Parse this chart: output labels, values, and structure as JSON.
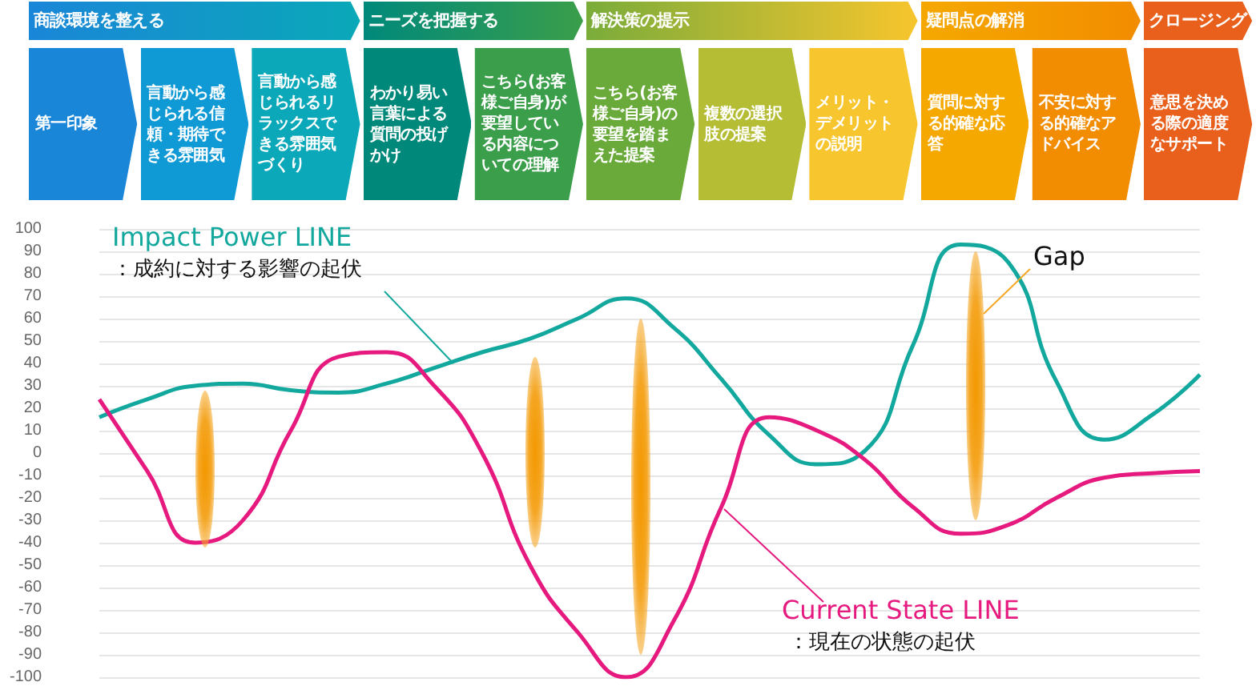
{
  "chart_data": {
    "type": "line",
    "categories": [
      null,
      null,
      null,
      null,
      null,
      null,
      null,
      null,
      null,
      null,
      null,
      null,
      null,
      null,
      null,
      null,
      null,
      null,
      null,
      null,
      null,
      null,
      null,
      null
    ],
    "series": [
      {
        "name": "Impact Power LINE",
        "color": "#13a89e",
        "values": [
          16,
          24,
          30,
          31,
          28,
          27,
          31,
          38,
          45,
          51,
          60,
          69,
          56,
          33,
          8,
          -5,
          1,
          48,
          93,
          85,
          32,
          6,
          17,
          35
        ]
      },
      {
        "name": "Current State LINE",
        "color": "#e6197f",
        "values": [
          24,
          -8,
          -40,
          -30,
          10,
          43,
          45,
          30,
          0,
          -50,
          -80,
          -100,
          -75,
          -24,
          16,
          10,
          -3,
          -24,
          -36,
          -32,
          -20,
          -11,
          -9,
          -8
        ]
      }
    ],
    "annotations": [
      "商談環境を整える",
      "ニーズを把握する",
      "解決策の提示",
      "疑問点の解消",
      "クロージング",
      "第一印象",
      "言動から感じられる信頼・期待できる雰囲気",
      "言動から感じられるリラックスできる雰囲気づくり",
      "わかり易い言葉による質問の投げかけ",
      "こちら(お客様ご自身)が要望している内容についての理解",
      "こちら(お客様ご自身)の要望を踏まえた提案",
      "複数の選択肢の提案",
      "メリット・デメリットの説明",
      "質問に対する的確な応答",
      "不安に対する的確なアドバイス",
      "意思を決める際の適度なサポート",
      "：成約に対する影響の起伏",
      "：現在の状態の起伏",
      "Gap"
    ],
    "ylim": [
      -100,
      100
    ],
    "yticks": [
      -100,
      -90,
      -80,
      -70,
      -60,
      -50,
      -40,
      -30,
      -20,
      -10,
      0,
      10,
      20,
      30,
      40,
      50,
      60,
      70,
      80,
      90,
      100
    ],
    "tick_labels": "y",
    "grid": "y",
    "legend": false,
    "marker": "none",
    "line_style": "solid"
  }
}
